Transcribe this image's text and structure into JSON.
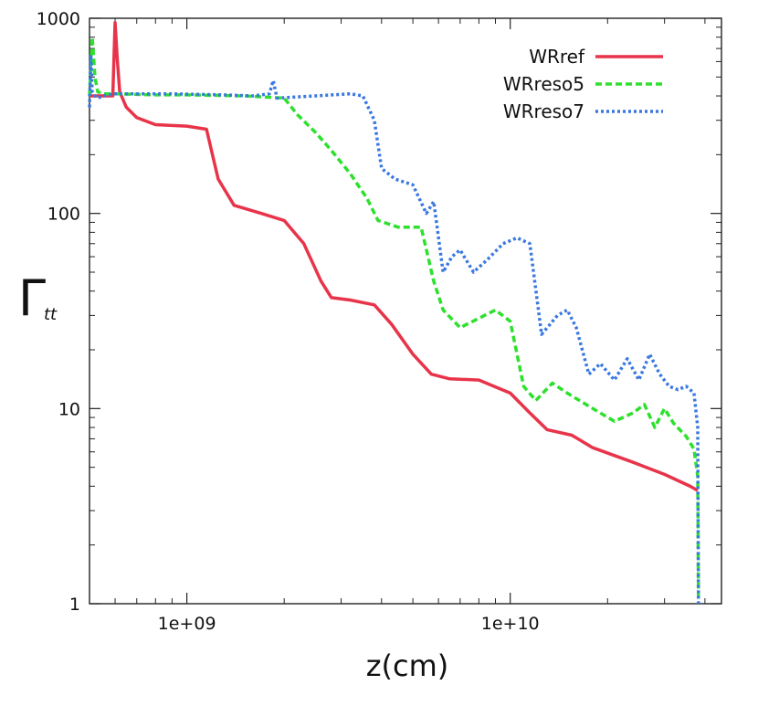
{
  "chart_data": {
    "type": "line",
    "title": "",
    "xlabel": "z(cm)",
    "ylabel": "Γ",
    "ylabel_sub": "tt",
    "x_scale": "log",
    "y_scale": "log",
    "xlim": [
      500000000,
      45000000000
    ],
    "ylim": [
      1,
      1000
    ],
    "x_ticks": [
      {
        "value": 1000000000,
        "label": "1e+09"
      },
      {
        "value": 10000000000,
        "label": "1e+10"
      }
    ],
    "y_ticks": [
      {
        "value": 1,
        "label": "1"
      },
      {
        "value": 10,
        "label": "10"
      },
      {
        "value": 100,
        "label": "100"
      },
      {
        "value": 1000,
        "label": "1000"
      }
    ],
    "legend_position": "top-right",
    "series": [
      {
        "name": "WRref",
        "color": "#e8344a",
        "style": "solid",
        "x": [
          500000000,
          590000000,
          600000000,
          610000000,
          620000000,
          650000000,
          700000000,
          800000000,
          1000000000,
          1150000000,
          1250000000,
          1400000000,
          1700000000,
          2000000000,
          2300000000,
          2600000000,
          2800000000,
          3200000000,
          3800000000,
          4300000000,
          5000000000,
          5700000000,
          6500000000,
          8000000000,
          10000000000,
          11500000000,
          13000000000,
          15500000000,
          18000000000,
          24000000000,
          30000000000,
          36000000000,
          38000000000
        ],
        "y": [
          400,
          400,
          950,
          600,
          420,
          350,
          310,
          285,
          280,
          270,
          150,
          110,
          100,
          92,
          70,
          45,
          37,
          36,
          34,
          27,
          19,
          15,
          14.2,
          14,
          12,
          9.5,
          7.8,
          7.3,
          6.3,
          5.3,
          4.6,
          4,
          3.8
        ]
      },
      {
        "name": "WRreso5",
        "color": "#2ee02e",
        "style": "dashed",
        "x": [
          500000000,
          510000000,
          520000000,
          530000000,
          550000000,
          600000000,
          800000000,
          1000000000,
          1500000000,
          2000000000,
          2200000000,
          2500000000,
          2800000000,
          3200000000,
          3600000000,
          3900000000,
          4500000000,
          5300000000,
          5800000000,
          6200000000,
          7000000000,
          8000000000,
          9000000000,
          10000000000,
          11000000000,
          12000000000,
          13500000000,
          15000000000,
          18000000000,
          21000000000,
          24000000000,
          26000000000,
          28000000000,
          30000000000,
          32000000000,
          35000000000,
          37000000000,
          38000000000,
          38200000000
        ],
        "y": [
          400,
          800,
          500,
          420,
          410,
          410,
          405,
          405,
          400,
          390,
          320,
          260,
          210,
          160,
          120,
          92,
          85,
          85,
          45,
          32,
          26,
          29,
          32,
          28,
          13,
          11,
          13.5,
          12,
          10,
          8.6,
          9.5,
          10.5,
          8,
          10,
          8.4,
          7.2,
          6.2,
          4.5,
          1
        ]
      },
      {
        "name": "WRreso7",
        "color": "#3a78e0",
        "style": "dotted",
        "x": [
          500000000,
          505000000,
          510000000,
          520000000,
          530000000,
          550000000,
          600000000,
          900000000,
          1300000000,
          1600000000,
          1800000000,
          1850000000,
          1900000000,
          2500000000,
          3200000000,
          3500000000,
          3800000000,
          4000000000,
          4400000000,
          5000000000,
          5500000000,
          5800000000,
          6200000000,
          6600000000,
          7000000000,
          7700000000,
          8500000000,
          9500000000,
          10500000000,
          11500000000,
          12500000000,
          14000000000,
          15000000000,
          16000000000,
          17500000000,
          19000000000,
          21000000000,
          23000000000,
          25000000000,
          27000000000,
          29000000000,
          31000000000,
          33000000000,
          35000000000,
          37000000000,
          38000000000,
          38200000000
        ],
        "y": [
          350,
          650,
          420,
          400,
          390,
          400,
          410,
          410,
          405,
          400,
          410,
          480,
          390,
          400,
          410,
          400,
          300,
          170,
          150,
          140,
          100,
          115,
          50,
          60,
          65,
          50,
          58,
          70,
          75,
          70,
          24,
          30,
          32,
          26,
          15,
          17,
          14,
          18,
          14,
          19,
          15,
          13,
          12.5,
          13,
          12,
          8,
          1
        ]
      }
    ]
  }
}
